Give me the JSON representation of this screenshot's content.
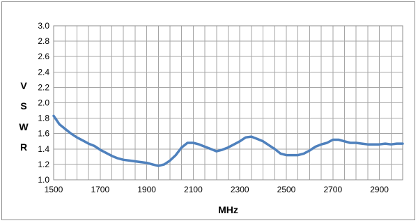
{
  "chart_data": {
    "type": "line",
    "title": "",
    "xlabel": "MHz",
    "ylabel_letters": [
      "V",
      "S",
      "W",
      "R"
    ],
    "xlim": [
      1500,
      3000
    ],
    "ylim": [
      1.0,
      3.0
    ],
    "x_ticks": [
      1500,
      1700,
      1900,
      2100,
      2300,
      2500,
      2700,
      2900
    ],
    "x_tick_labels": [
      "1500",
      "1700",
      "1900",
      "2100",
      "2300",
      "2500",
      "2700",
      "2900"
    ],
    "y_ticks": [
      1.0,
      1.2,
      1.4,
      1.6,
      1.8,
      2.0,
      2.2,
      2.4,
      2.6,
      2.8,
      3.0
    ],
    "y_tick_labels": [
      "1.0",
      "1.2",
      "1.4",
      "1.6",
      "1.8",
      "2.0",
      "2.2",
      "2.4",
      "2.6",
      "2.8",
      "3.0"
    ],
    "x_minor_step": 50,
    "grid": true,
    "line_color": "#4f81bd",
    "series": [
      {
        "x": [
          1500,
          1525,
          1550,
          1575,
          1600,
          1625,
          1650,
          1675,
          1700,
          1725,
          1750,
          1775,
          1800,
          1825,
          1850,
          1875,
          1900,
          1925,
          1950,
          1975,
          2000,
          2025,
          2050,
          2075,
          2100,
          2125,
          2150,
          2175,
          2200,
          2225,
          2250,
          2275,
          2300,
          2325,
          2350,
          2375,
          2400,
          2425,
          2450,
          2475,
          2500,
          2525,
          2550,
          2575,
          2600,
          2625,
          2650,
          2675,
          2700,
          2725,
          2750,
          2775,
          2800,
          2825,
          2850,
          2875,
          2900,
          2925,
          2950,
          2975,
          3000
        ],
        "values": [
          1.83,
          1.72,
          1.66,
          1.6,
          1.55,
          1.51,
          1.47,
          1.44,
          1.39,
          1.35,
          1.31,
          1.28,
          1.26,
          1.25,
          1.24,
          1.23,
          1.22,
          1.2,
          1.18,
          1.2,
          1.25,
          1.32,
          1.42,
          1.48,
          1.48,
          1.46,
          1.43,
          1.4,
          1.37,
          1.39,
          1.42,
          1.46,
          1.5,
          1.55,
          1.56,
          1.53,
          1.5,
          1.45,
          1.4,
          1.34,
          1.32,
          1.32,
          1.32,
          1.34,
          1.38,
          1.43,
          1.46,
          1.48,
          1.52,
          1.52,
          1.5,
          1.48,
          1.48,
          1.47,
          1.46,
          1.46,
          1.46,
          1.47,
          1.46,
          1.47,
          1.47
        ]
      }
    ]
  }
}
